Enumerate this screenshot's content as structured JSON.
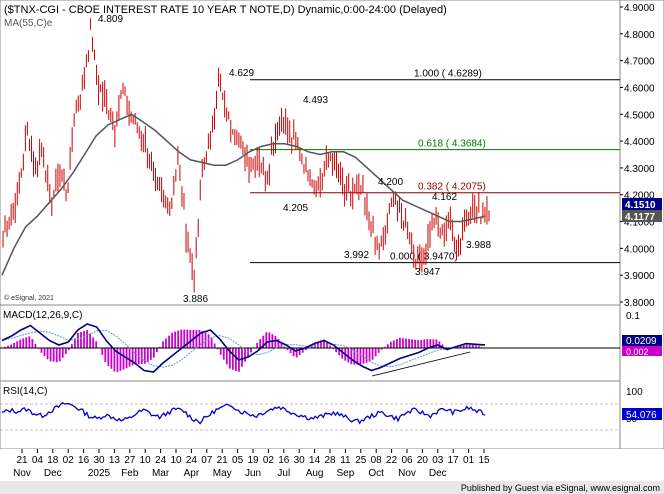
{
  "colors": {
    "price_bar": "#cc0000",
    "ma": "#555555",
    "fib_red": "#8b0000",
    "fib_green": "#007700",
    "macd_line": "#000080",
    "macd_signal": "#6699cc",
    "macd_hist": "#cc00cc",
    "rsi": "#0000cc",
    "axis_bg": "#ffffff",
    "last_badge": "#000080",
    "footer_bg": "#e8e8e8"
  },
  "header": {
    "title": "($TNX-CGI - CBOE INTEREST RATE 10 YEAR T NOTE,D) Dynamic,0:00-24:00 (Delayed)",
    "ma_label": "MA(55,C)e",
    "copyright": "© eSignal, 2021"
  },
  "footer": {
    "text": "Published by Guest via eSignal, www.esignal.com"
  },
  "chart_data": [
    {
      "type": "bar",
      "panel": "price",
      "ylim": [
        3.8,
        4.9
      ],
      "y_ticks": [
        "4.9000",
        "4.8000",
        "4.7000",
        "4.6000",
        "4.5000",
        "4.4000",
        "4.3000",
        "4.2000",
        "4.1000",
        "4.0000",
        "3.9000",
        "3.8000"
      ],
      "last_value": "4.1510",
      "ma_value": "4.1177",
      "x_ticks": [
        {
          "day": "21",
          "month": "Nov"
        },
        {
          "day": "04",
          "month": ""
        },
        {
          "day": "18",
          "month": "Dec"
        },
        {
          "day": "02",
          "month": ""
        },
        {
          "day": "16",
          "month": ""
        },
        {
          "day": "30",
          "month": "2025"
        },
        {
          "day": "13",
          "month": ""
        },
        {
          "day": "27",
          "month": "Feb"
        },
        {
          "day": "10",
          "month": ""
        },
        {
          "day": "24",
          "month": "Mar"
        },
        {
          "day": "10",
          "month": ""
        },
        {
          "day": "24",
          "month": "Apr"
        },
        {
          "day": "07",
          "month": ""
        },
        {
          "day": "21",
          "month": "May"
        },
        {
          "day": "05",
          "month": ""
        },
        {
          "day": "19",
          "month": "Jun"
        },
        {
          "day": "02",
          "month": ""
        },
        {
          "day": "16",
          "month": "Jul"
        },
        {
          "day": "30",
          "month": ""
        },
        {
          "day": "14",
          "month": "Aug"
        },
        {
          "day": "28",
          "month": ""
        },
        {
          "day": "11",
          "month": "Sep"
        },
        {
          "day": "25",
          "month": ""
        },
        {
          "day": "08",
          "month": "Oct"
        },
        {
          "day": "22",
          "month": ""
        },
        {
          "day": "06",
          "month": "Nov"
        },
        {
          "day": "20",
          "month": ""
        },
        {
          "day": "03",
          "month": "Dec"
        },
        {
          "day": "17",
          "month": ""
        },
        {
          "day": "01",
          "month": ""
        },
        {
          "day": "15",
          "month": ""
        }
      ],
      "price_path": [
        4.05,
        4.12,
        4.22,
        4.45,
        4.3,
        4.38,
        4.15,
        4.3,
        4.2,
        4.5,
        4.6,
        4.809,
        4.6,
        4.55,
        4.45,
        4.6,
        4.5,
        4.45,
        4.38,
        4.25,
        4.2,
        4.15,
        4.35,
        4.05,
        3.886,
        4.3,
        4.4,
        4.629,
        4.5,
        4.45,
        4.38,
        4.3,
        4.35,
        4.25,
        4.4,
        4.493,
        4.42,
        4.38,
        4.3,
        4.25,
        4.25,
        4.35,
        4.3,
        4.2,
        4.205,
        4.22,
        4.1,
        3.992,
        4.05,
        4.2,
        4.12,
        4.05,
        3.947,
        4.0,
        4.12,
        4.05,
        4.1,
        3.988,
        4.1,
        4.162,
        4.12,
        4.15
      ],
      "ma_path": [
        3.9,
        4.0,
        4.08,
        4.12,
        4.17,
        4.22,
        4.28,
        4.35,
        4.42,
        4.46,
        4.48,
        4.5,
        4.47,
        4.44,
        4.4,
        4.36,
        4.33,
        4.32,
        4.31,
        4.31,
        4.33,
        4.36,
        4.38,
        4.39,
        4.39,
        4.38,
        4.36,
        4.35,
        4.36,
        4.36,
        4.34,
        4.3,
        4.26,
        4.22,
        4.18,
        4.16,
        4.14,
        4.12,
        4.1,
        4.1,
        4.11,
        4.12
      ],
      "fib_levels": [
        {
          "value": 4.6289,
          "label": "1.000 ( 4.6289)",
          "color": "#000000"
        },
        {
          "value": 4.3684,
          "label": "0.618 ( 4.3684)",
          "color": "#007700"
        },
        {
          "value": 4.2075,
          "label": "0.382 ( 4.2075)",
          "color": "#8b0000"
        },
        {
          "value": 3.947,
          "label": "0.000 ( 3.9470)",
          "color": "#000000"
        }
      ],
      "annotations": [
        "4.809",
        "4.629",
        "4.493",
        "4.205",
        "4.200",
        "4.162",
        "3.992",
        "3.988",
        "3.947",
        "3.886"
      ]
    },
    {
      "type": "line",
      "panel": "macd",
      "title": "MACD(12,26,9,C)",
      "y_ticks": [
        "0.1",
        "0.0"
      ],
      "macd_value": "0.0209",
      "signal_value": "0.002",
      "macd_path": [
        0.05,
        0.08,
        0.12,
        0.15,
        0.1,
        0.05,
        0.02,
        0.04,
        0.12,
        0.16,
        0.14,
        0.05,
        -0.02,
        -0.06,
        -0.1,
        -0.15,
        -0.16,
        -0.1,
        -0.05,
        0.0,
        0.05,
        0.1,
        0.12,
        0.06,
        -0.02,
        -0.08,
        -0.06,
        -0.02,
        0.04,
        0.05,
        0.02,
        -0.02,
        0.0,
        0.03,
        0.05,
        0.02,
        -0.03,
        -0.08,
        -0.12,
        -0.15,
        -0.13,
        -0.1,
        -0.07,
        -0.05,
        -0.03,
        0.0,
        0.02,
        -0.01,
        0.01,
        0.03,
        0.025,
        0.0209
      ]
    },
    {
      "type": "line",
      "panel": "rsi",
      "title": "RSI(14,C)",
      "y_ticks": [
        "100",
        "50"
      ],
      "rsi_value": "54.076",
      "rsi_path": [
        55,
        60,
        58,
        62,
        55,
        50,
        58,
        65,
        72,
        68,
        60,
        50,
        45,
        52,
        48,
        42,
        45,
        55,
        60,
        52,
        48,
        56,
        62,
        58,
        46,
        40,
        50,
        60,
        65,
        70,
        58,
        55,
        50,
        56,
        62,
        66,
        60,
        54,
        50,
        46,
        48,
        52,
        56,
        50,
        44,
        40,
        46,
        52,
        56,
        50,
        45,
        55,
        60,
        56,
        50,
        58,
        62,
        56,
        60,
        64,
        58,
        54
      ]
    }
  ]
}
